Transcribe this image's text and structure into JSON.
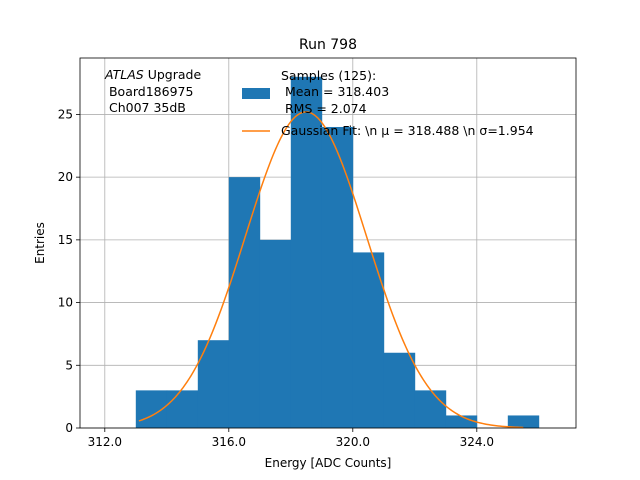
{
  "chart_data": {
    "type": "bar",
    "title": "Run 798",
    "xlabel": "Energy [ADC Counts]",
    "ylabel": "Entries",
    "xlim": [
      311.2,
      327.2
    ],
    "ylim": [
      0,
      29.5
    ],
    "xticks": [
      312.0,
      316.0,
      320.0,
      324.0
    ],
    "xtick_labels": [
      "312.0",
      "316.0",
      "320.0",
      "324.0"
    ],
    "yticks": [
      0,
      5,
      10,
      15,
      20,
      25
    ],
    "ytick_labels": [
      "0",
      "5",
      "10",
      "15",
      "20",
      "25"
    ],
    "grid": true,
    "bar_color": "#1f77b4",
    "fit_color": "#ff7f0e",
    "histogram": {
      "bin_edges": [
        313,
        314,
        315,
        316,
        317,
        318,
        319,
        320,
        321,
        322,
        323,
        324,
        325,
        326
      ],
      "counts": [
        3,
        3,
        7,
        20,
        15,
        28,
        24,
        14,
        6,
        3,
        1,
        0,
        1
      ]
    },
    "gaussian_fit": {
      "amplitude": 25.2,
      "mu": 318.488,
      "sigma": 1.954,
      "x_range": [
        313.1,
        325.5
      ]
    },
    "annotation": {
      "line1_italic": "ATLAS",
      "line1_rest": " Upgrade",
      "line2": " Board186975",
      "line3": " Ch007 35dB"
    },
    "legend": {
      "placement": "top-right",
      "hist_lines": [
        "Samples (125):",
        " Mean = 318.403",
        " RMS = 2.074"
      ],
      "fit_label": "Gaussian Fit: \\n μ = 318.488 \\n σ=1.954"
    }
  }
}
